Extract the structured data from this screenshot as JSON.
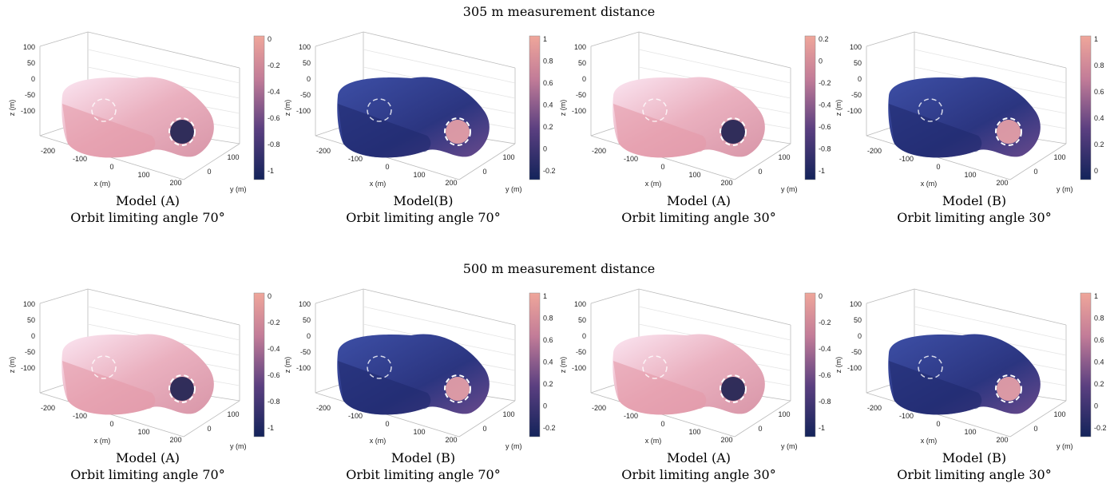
{
  "axes": {
    "x": {
      "label": "x (m)",
      "ticks": [
        -200,
        -100,
        0,
        100,
        200
      ]
    },
    "y": {
      "label": "y (m)",
      "ticks": [
        0,
        100
      ]
    },
    "z": {
      "label": "z (m)",
      "ticks": [
        100,
        50,
        0,
        -50,
        -100
      ]
    }
  },
  "rows": [
    {
      "title": "305 m measurement distance",
      "panels": [
        {
          "caption": [
            "Model (A)",
            "Orbit limiting angle 70°"
          ],
          "colorbar": [
            0,
            -0.2,
            -0.4,
            -0.6,
            -0.8,
            -1
          ]
        },
        {
          "caption": [
            "Model(B)",
            "Orbit limiting angle 70°"
          ],
          "colorbar": [
            1,
            0.8,
            0.6,
            0.4,
            0.2,
            0,
            -0.2
          ]
        },
        {
          "caption": [
            "Model (A)",
            "Orbit limiting angle 30°"
          ],
          "colorbar": [
            0.2,
            0,
            -0.2,
            -0.4,
            -0.6,
            -0.8,
            -1
          ]
        },
        {
          "caption": [
            "Model (B)",
            "Orbit limiting angle 30°"
          ],
          "colorbar": [
            1,
            0.8,
            0.6,
            0.4,
            0.2,
            0
          ]
        }
      ]
    },
    {
      "title": "500 m measurement distance",
      "panels": [
        {
          "caption": [
            "Model (A)",
            "Orbit limiting angle 70°"
          ],
          "colorbar": [
            0,
            -0.2,
            -0.4,
            -0.6,
            -0.8,
            -1
          ]
        },
        {
          "caption": [
            "Model (B)",
            "Orbit limiting angle 70°"
          ],
          "colorbar": [
            1,
            0.8,
            0.6,
            0.4,
            0.2,
            0,
            -0.2
          ]
        },
        {
          "caption": [
            "Model (A)",
            "Orbit limiting angle 30°"
          ],
          "colorbar": [
            0,
            -0.2,
            -0.4,
            -0.6,
            -0.8,
            -1
          ]
        },
        {
          "caption": [
            "Model (B)",
            "Orbit limiting angle 30°"
          ],
          "colorbar": [
            1,
            0.8,
            0.6,
            0.4,
            0.2,
            0,
            -0.2
          ]
        }
      ]
    }
  ]
}
